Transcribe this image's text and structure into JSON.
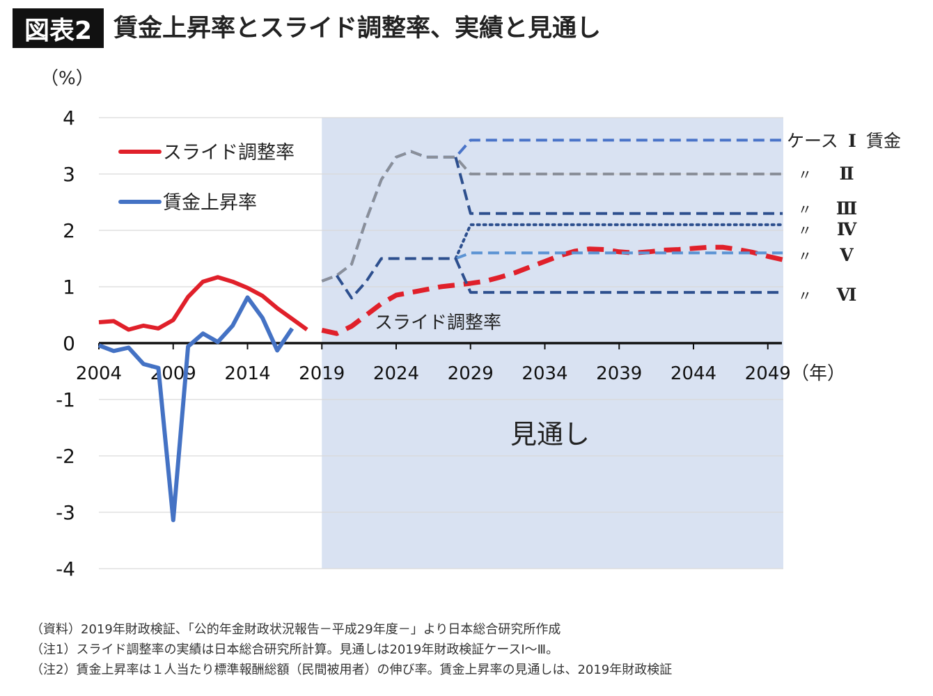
{
  "header": {
    "badge": "図表2",
    "title": "賃金上昇率とスライド調整率、実績と見通し"
  },
  "colors": {
    "slide": "#e0202a",
    "wage": "#4472c4",
    "shade": "#d9e2f2",
    "case1": "#4a74c8",
    "case2": "#8a8f99",
    "case3": "#2d4f8e",
    "case4": "#2d4f8e",
    "case5": "#5b93d3",
    "case6": "#2d4f8e",
    "axis": "#111111",
    "grid": "#d9d9d9"
  },
  "chart_data": {
    "type": "line",
    "ylabel": "（%）",
    "xunit": "（年）",
    "ylim": [
      -4,
      4
    ],
    "xlim": [
      2004,
      2050
    ],
    "yticks": [
      "4",
      "3",
      "2",
      "1",
      "0",
      "-1",
      "-2",
      "-3",
      "-4"
    ],
    "xticks": [
      "2004",
      "2009",
      "2014",
      "2019",
      "2024",
      "2029",
      "2034",
      "2039",
      "2044",
      "2049"
    ],
    "grid": "horizontal",
    "shaded_region": {
      "from": 2019,
      "to": 2050,
      "label": "見通し"
    },
    "legend": [
      {
        "label": "スライド調整率",
        "series": "slide_actual"
      },
      {
        "label": "賃金上昇率",
        "series": "wage_actual"
      }
    ],
    "annotations": {
      "slide_projection_label": "スライド調整率",
      "case_labels": [
        {
          "mark": "ケース",
          "numeral": "Ⅰ",
          "suffix": "賃金",
          "series": "case1"
        },
        {
          "mark": "〃",
          "numeral": "Ⅱ",
          "suffix": "",
          "series": "case2"
        },
        {
          "mark": "〃",
          "numeral": "Ⅲ",
          "suffix": "",
          "series": "case3"
        },
        {
          "mark": "〃",
          "numeral": "Ⅳ",
          "suffix": "",
          "series": "case4"
        },
        {
          "mark": "〃",
          "numeral": "Ⅴ",
          "suffix": "",
          "series": "case5"
        },
        {
          "mark": "〃",
          "numeral": "Ⅵ",
          "suffix": "",
          "series": "case6"
        }
      ]
    },
    "series": [
      {
        "id": "slide_actual",
        "style": "solid",
        "color": "slide",
        "width": 6,
        "x": [
          2004,
          2005,
          2006,
          2007,
          2008,
          2009,
          2010,
          2011,
          2012,
          2013,
          2014,
          2015,
          2016,
          2017,
          2018
        ],
        "y": [
          0.37,
          0.39,
          0.24,
          0.31,
          0.26,
          0.41,
          0.82,
          1.09,
          1.17,
          1.09,
          0.98,
          0.84,
          0.62,
          0.43,
          0.24
        ]
      },
      {
        "id": "wage_actual",
        "style": "solid",
        "color": "wage",
        "width": 6,
        "x": [
          2004,
          2005,
          2006,
          2007,
          2008,
          2009,
          2010,
          2011,
          2012,
          2013,
          2014,
          2015,
          2016,
          2017
        ],
        "y": [
          -0.04,
          -0.14,
          -0.08,
          -0.37,
          -0.44,
          -3.14,
          -0.06,
          0.17,
          0.02,
          0.31,
          0.81,
          0.45,
          -0.13,
          0.26
        ]
      },
      {
        "id": "slide_projection",
        "style": "dash-thick",
        "color": "slide",
        "width": 7,
        "x": [
          2019,
          2020,
          2021,
          2022,
          2023,
          2024,
          2025,
          2026,
          2027,
          2028,
          2029,
          2030,
          2031,
          2032,
          2033,
          2034,
          2035,
          2036,
          2037,
          2038,
          2039,
          2040,
          2041,
          2042,
          2043,
          2044,
          2045,
          2046,
          2047,
          2048,
          2049,
          2050
        ],
        "y": [
          0.23,
          0.17,
          0.3,
          0.5,
          0.7,
          0.85,
          0.9,
          0.95,
          1.0,
          1.03,
          1.06,
          1.1,
          1.17,
          1.25,
          1.35,
          1.45,
          1.55,
          1.63,
          1.67,
          1.66,
          1.62,
          1.6,
          1.62,
          1.65,
          1.66,
          1.68,
          1.7,
          1.7,
          1.66,
          1.61,
          1.54,
          1.48
        ]
      },
      {
        "id": "case1",
        "style": "dash",
        "color": "case1",
        "width": 4,
        "x": [
          2019,
          2020,
          2021,
          2022,
          2023,
          2024,
          2025,
          2026,
          2027,
          2028,
          2029,
          2030,
          2050
        ],
        "y": [
          1.1,
          1.2,
          1.4,
          2.2,
          2.9,
          3.3,
          3.4,
          3.3,
          3.3,
          3.3,
          3.6,
          3.6,
          3.6
        ]
      },
      {
        "id": "case2",
        "style": "dash",
        "color": "case2",
        "width": 4,
        "x": [
          2019,
          2020,
          2021,
          2022,
          2023,
          2024,
          2025,
          2026,
          2027,
          2028,
          2029,
          2030,
          2050
        ],
        "y": [
          1.1,
          1.2,
          1.4,
          2.2,
          2.9,
          3.3,
          3.4,
          3.3,
          3.3,
          3.3,
          3.0,
          3.0,
          3.0
        ]
      },
      {
        "id": "case3",
        "style": "dash",
        "color": "case3",
        "width": 4,
        "x": [
          2028,
          2029,
          2030,
          2050
        ],
        "y": [
          3.3,
          2.3,
          2.3,
          2.3
        ]
      },
      {
        "id": "case4",
        "style": "dot",
        "color": "case4",
        "width": 4,
        "x": [
          2028,
          2029,
          2030,
          2050
        ],
        "y": [
          1.5,
          2.1,
          2.1,
          2.1
        ]
      },
      {
        "id": "case5",
        "style": "dash",
        "color": "case5",
        "width": 4,
        "x": [
          2028,
          2029,
          2030,
          2050
        ],
        "y": [
          1.5,
          1.6,
          1.6,
          1.6
        ]
      },
      {
        "id": "case6",
        "style": "dash",
        "color": "case6",
        "width": 4,
        "x": [
          2020,
          2021,
          2022,
          2023,
          2024,
          2025,
          2026,
          2027,
          2028,
          2029,
          2030,
          2050
        ],
        "y": [
          1.2,
          0.8,
          1.1,
          1.5,
          1.5,
          1.5,
          1.5,
          1.5,
          1.5,
          0.9,
          0.9,
          0.9
        ]
      }
    ]
  },
  "notes": [
    "（資料）2019年財政検証、「公的年金財政状況報告－平成29年度－」より日本総合研究所作成",
    "（注1）スライド調整率の実績は日本総合研究所計算。見通しは2019年財政検証ケースⅠ～Ⅲ。",
    "（注2）賃金上昇率は１人当たり標準報酬総額（民間被用者）の伸び率。賃金上昇率の見通しは、2019年財政検証"
  ]
}
